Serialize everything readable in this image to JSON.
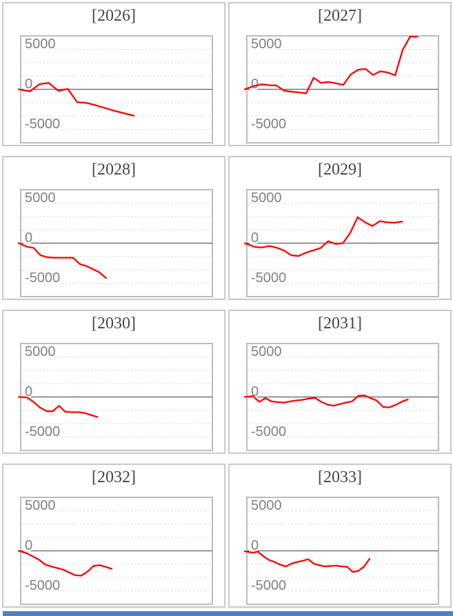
{
  "style": {
    "page_background": "#ffffff",
    "line_color": "#ff0000",
    "zero_axis_color": "#747474",
    "gridline_color": "#d9d9d9",
    "plot_border_color": "#b9bdc0",
    "panel_border_color": "#c9c9c9",
    "axis_label_color": "#808080",
    "title_color": "#43434b",
    "bottom_bar_color": "#4f81bd"
  },
  "axis": {
    "tick_labels": [
      "5000",
      "0",
      "-5000"
    ],
    "tick_values": [
      5000,
      0,
      -5000
    ],
    "y_display_max": 6860,
    "y_display_min": -6860,
    "gridline_step": 1667,
    "grid_style": "dashed"
  },
  "chart_data": [
    {
      "type": "line",
      "title": "[2026]",
      "x_end": 0.59,
      "values": [
        0,
        -250,
        650,
        800,
        -200,
        50,
        -1600,
        -1700,
        -2000,
        -2350,
        -2700,
        -3000,
        -3300
      ]
    },
    {
      "type": "line",
      "title": "[2027]",
      "x_end": 0.89,
      "values": [
        0,
        430,
        630,
        520,
        480,
        -150,
        -300,
        -380,
        -500,
        1450,
        800,
        920,
        760,
        560,
        1850,
        2450,
        2550,
        1800,
        2250,
        2100,
        1750,
        4900,
        7200,
        7200
      ]
    },
    {
      "type": "line",
      "title": "[2028]",
      "x_end": 0.445,
      "values": [
        0,
        -450,
        -600,
        -1500,
        -1750,
        -1820,
        -1820,
        -1820,
        -1820,
        -2600,
        -2850,
        -3250,
        -3650,
        -4350
      ]
    },
    {
      "type": "line",
      "title": "[2029]",
      "x_end": 0.81,
      "values": [
        0,
        -450,
        -550,
        -350,
        -550,
        -900,
        -1500,
        -1600,
        -1200,
        -900,
        -600,
        250,
        -100,
        0,
        1300,
        3250,
        2600,
        2150,
        2750,
        2600,
        2550,
        2700
      ]
    },
    {
      "type": "line",
      "title": "[2030]",
      "x_end": 0.4,
      "values": [
        0,
        -50,
        -600,
        -1300,
        -1750,
        -1800,
        -1100,
        -1850,
        -1900,
        -1900,
        -2000,
        -2250,
        -2500
      ]
    },
    {
      "type": "line",
      "title": "[2031]",
      "x_end": 0.84,
      "values": [
        0,
        100,
        -600,
        -150,
        -550,
        -650,
        -700,
        -550,
        -430,
        -350,
        -200,
        -100,
        -600,
        -950,
        -1100,
        -900,
        -700,
        -550,
        150,
        200,
        -150,
        -450,
        -1250,
        -1300,
        -1000,
        -600,
        -300
      ]
    },
    {
      "type": "line",
      "title": "[2032]",
      "x_end": 0.475,
      "values": [
        0,
        -300,
        -700,
        -1100,
        -1700,
        -1950,
        -2150,
        -2350,
        -2700,
        -3050,
        -3100,
        -2600,
        -1900,
        -1800,
        -2000,
        -2250
      ]
    },
    {
      "type": "line",
      "title": "[2033]",
      "x_end": 0.64,
      "values": [
        -50,
        -250,
        -100,
        -700,
        -1150,
        -1400,
        -1750,
        -1950,
        -1600,
        -1400,
        -1250,
        -1050,
        -1600,
        -1800,
        -1950,
        -1900,
        -1850,
        -1950,
        -2000,
        -2650,
        -2500,
        -2000,
        -1000
      ]
    }
  ]
}
